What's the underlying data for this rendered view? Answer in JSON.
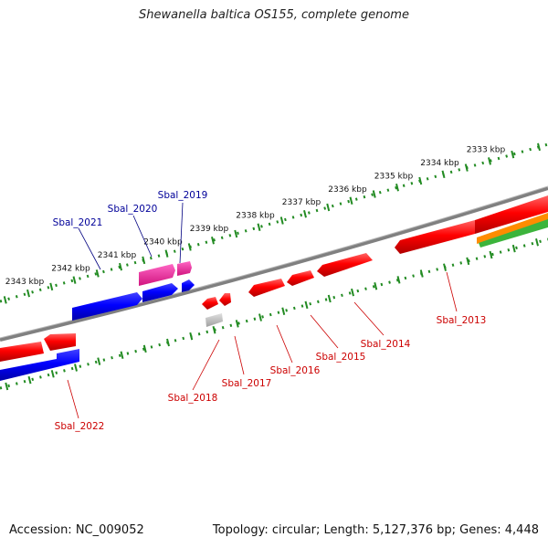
{
  "title": "Shewanella baltica OS155, complete genome",
  "footer": {
    "accession": "Accession: NC_009052",
    "topology": "Topology: circular; Length: 5,127,376 bp; Genes: 4,448"
  },
  "scale": {
    "labels": [
      "2333 kbp",
      "2334 kbp",
      "2335 kbp",
      "2336 kbp",
      "2337 kbp",
      "2338 kbp",
      "2339 kbp",
      "2340 kbp",
      "2341 kbp",
      "2342 kbp",
      "2343 kbp"
    ]
  },
  "genes": {
    "outer": [
      {
        "label": "Sbal_2019",
        "color": "#0000cc"
      },
      {
        "label": "Sbal_2020",
        "color": "#0000cc"
      },
      {
        "label": "Sbal_2021",
        "color": "#0000cc"
      }
    ],
    "inner": [
      {
        "label": "Sbal_2013",
        "color": "#cc0000"
      },
      {
        "label": "Sbal_2014",
        "color": "#cc0000"
      },
      {
        "label": "Sbal_2015",
        "color": "#cc0000"
      },
      {
        "label": "Sbal_2016",
        "color": "#cc0000"
      },
      {
        "label": "Sbal_2017",
        "color": "#cc0000"
      },
      {
        "label": "Sbal_2018",
        "color": "#cc0000"
      },
      {
        "label": "Sbal_2022",
        "color": "#cc0000"
      }
    ]
  },
  "colors": {
    "backbone": "#808080",
    "tick": "#228B22",
    "forward_strand": "#0000ff",
    "reverse_strand": "#ff0000",
    "pink_feature": "#ee2a9c",
    "grey_feature": "#b5b5b5",
    "orange_feature": "#ff8c00",
    "green_feature": "#3cb43c"
  }
}
